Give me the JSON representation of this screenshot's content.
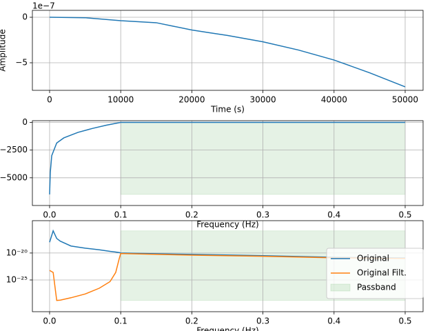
{
  "chart_data": [
    {
      "type": "line",
      "x_label": "Time (s)",
      "y_label": "Amplitude",
      "offset_text": "1e−7",
      "grid": true,
      "xlim": [
        -2420,
        52520
      ],
      "ylim": [
        -8.03,
        0.76
      ],
      "xticks": [
        0,
        10000,
        20000,
        30000,
        40000,
        50000
      ],
      "yticks": [
        {
          "value": -5,
          "label": "−5"
        },
        0
      ],
      "x": [
        0,
        5000,
        10000,
        15000,
        17500,
        20000,
        22500,
        25000,
        30000,
        35000,
        40000,
        45000,
        50000
      ],
      "series": [
        {
          "color": "#1f77b4",
          "values": [
            0,
            -0.05,
            -0.38,
            -0.6,
            -1.0,
            -1.4,
            -1.7,
            -2.0,
            -2.7,
            -3.6,
            -4.7,
            -6.1,
            -7.65
          ]
        }
      ]
    },
    {
      "type": "line",
      "x_label": "Frequency (Hz)",
      "grid": true,
      "xlim": [
        -0.0242,
        0.5252
      ],
      "ylim": [
        -7500,
        154
      ],
      "xticks": [
        {
          "value": 0,
          "label": "0.0"
        },
        0.1,
        0.2,
        0.3,
        0.4,
        0.5
      ],
      "yticks": [
        {
          "value": -5000,
          "label": "−5000"
        },
        {
          "value": -2500,
          "label": "−2500"
        },
        0
      ],
      "x": [
        0,
        0.001,
        0.003,
        0.01,
        0.02,
        0.04,
        0.06,
        0.08,
        0.1,
        0.5
      ],
      "series": [
        {
          "color": "#1f77b4",
          "values": [
            -6500,
            -4500,
            -3000,
            -1860,
            -1400,
            -900,
            -550,
            -250,
            0,
            0
          ]
        }
      ],
      "passband": {
        "x": [
          0.1,
          0.5
        ],
        "y": [
          -6500,
          0
        ],
        "color": "green",
        "alpha": 0.1
      }
    },
    {
      "type": "line",
      "x_label": "Frequency (Hz)",
      "grid": true,
      "log_y": true,
      "legend": "lower right",
      "xlim": [
        -0.0242,
        0.5252
      ],
      "ylim": [
        1.3e-31,
        1e-14
      ],
      "xticks": [
        {
          "value": 0,
          "label": "0.0"
        },
        0.1,
        0.2,
        0.3,
        0.4,
        0.5
      ],
      "yticks": [
        {
          "value": 1e-25,
          "label": "10⁻²⁵"
        },
        {
          "value": 1e-20,
          "label": "10⁻²⁰"
        }
      ],
      "x": [
        0,
        0.005,
        0.01,
        0.015,
        0.03,
        0.05,
        0.07,
        0.085,
        0.093,
        0.098,
        0.1,
        0.2,
        0.3,
        0.4,
        0.5
      ],
      "series": [
        {
          "name": "Original",
          "color": "#1f77b4",
          "values": [
            1e-18,
            1.3e-16,
            5e-18,
            1.6e-18,
            2e-19,
            8e-20,
            4e-20,
            2e-20,
            1.5e-20,
            1.2e-20,
            1e-20,
            5.5e-21,
            3.2e-21,
            1.6e-21,
            1.2e-21
          ]
        },
        {
          "name": "Original Filt.",
          "color": "#ff7f0e",
          "values": [
            6e-24,
            2.5e-24,
            1.6e-29,
            1.8e-29,
            5e-29,
            2.5e-28,
            3e-27,
            5e-26,
            2.5e-24,
            1e-21,
            8e-21,
            4e-21,
            2.5e-21,
            1.3e-21,
            1e-21
          ]
        }
      ],
      "passband": {
        "name": "Passband",
        "x": [
          0.1,
          0.5
        ],
        "y": [
          1.6e-29,
          1.3e-16
        ],
        "color": "green",
        "alpha": 0.1
      }
    }
  ]
}
